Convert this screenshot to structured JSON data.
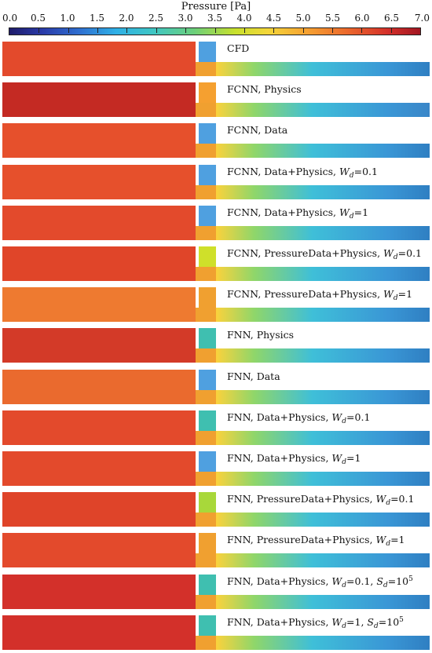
{
  "colorbar": {
    "title": "Pressure [Pa]",
    "min": 0.0,
    "max": 7.0,
    "ticks": [
      "0.0",
      "0.5",
      "1.0",
      "1.5",
      "2.0",
      "2.5",
      "3.0",
      "3.5",
      "4.0",
      "4.5",
      "5.0",
      "5.5",
      "6.0",
      "6.5",
      "7.0"
    ]
  },
  "panels": [
    {
      "label": [
        {
          "t": "CFD"
        }
      ],
      "left_color": "#e34a2c",
      "right_color": "#2f7fc2",
      "gap_color": "#4fa0e0"
    },
    {
      "label": [
        {
          "t": "FCNN, Physics"
        }
      ],
      "left_color": "#c42a23",
      "right_color": "#3a86c8",
      "gap_color": "#f5a030"
    },
    {
      "label": [
        {
          "t": "FCNN, Data"
        }
      ],
      "left_color": "#e6502c",
      "right_color": "#2f7fc2",
      "gap_color": "#4fa0e0"
    },
    {
      "label": [
        {
          "t": "FCNN, Data+Physics, "
        },
        {
          "t": "W",
          "i": true
        },
        {
          "t": "d",
          "sub": true
        },
        {
          "t": "=0.1"
        }
      ],
      "left_color": "#e6502c",
      "right_color": "#2f7fc2",
      "gap_color": "#4fa0e0"
    },
    {
      "label": [
        {
          "t": "FCNN, Data+Physics, "
        },
        {
          "t": "W",
          "i": true
        },
        {
          "t": "d",
          "sub": true
        },
        {
          "t": "=1"
        }
      ],
      "left_color": "#e34a2c",
      "right_color": "#2f7fc2",
      "gap_color": "#4fa0e0"
    },
    {
      "label": [
        {
          "t": "FCNN, PressureData+Physics, "
        },
        {
          "t": "W",
          "i": true
        },
        {
          "t": "d",
          "sub": true
        },
        {
          "t": "=0.1"
        }
      ],
      "left_color": "#e04529",
      "right_color": "#2f7fc2",
      "gap_color": "#cfe02a"
    },
    {
      "label": [
        {
          "t": "FCNN, PressureData+Physics, "
        },
        {
          "t": "W",
          "i": true
        },
        {
          "t": "d",
          "sub": true
        },
        {
          "t": "=1"
        }
      ],
      "left_color": "#ee7a30",
      "right_color": "#2f7fc2",
      "gap_color": "#f0a030"
    },
    {
      "label": [
        {
          "t": "FNN, Physics"
        }
      ],
      "left_color": "#d33a28",
      "right_color": "#2f7fc2",
      "gap_color": "#3fbfb0"
    },
    {
      "label": [
        {
          "t": "FNN, Data"
        }
      ],
      "left_color": "#ea6a2e",
      "right_color": "#2f7fc2",
      "gap_color": "#4fa0e0"
    },
    {
      "label": [
        {
          "t": "FNN, Data+Physics, "
        },
        {
          "t": "W",
          "i": true
        },
        {
          "t": "d",
          "sub": true
        },
        {
          "t": "=0.1"
        }
      ],
      "left_color": "#e34a2c",
      "right_color": "#2f7fc2",
      "gap_color": "#3fbfb0"
    },
    {
      "label": [
        {
          "t": "FNN, Data+Physics, "
        },
        {
          "t": "W",
          "i": true
        },
        {
          "t": "d",
          "sub": true
        },
        {
          "t": "=1"
        }
      ],
      "left_color": "#e34a2c",
      "right_color": "#2f7fc2",
      "gap_color": "#4fa0e0"
    },
    {
      "label": [
        {
          "t": "FNN, PressureData+Physics, "
        },
        {
          "t": "W",
          "i": true
        },
        {
          "t": "d",
          "sub": true
        },
        {
          "t": "=0.1"
        }
      ],
      "left_color": "#df4429",
      "right_color": "#2f7fc2",
      "gap_color": "#a8d83a"
    },
    {
      "label": [
        {
          "t": "FNN, PressureData+Physics, "
        },
        {
          "t": "W",
          "i": true
        },
        {
          "t": "d",
          "sub": true
        },
        {
          "t": "=1"
        }
      ],
      "left_color": "#e34a2c",
      "right_color": "#2f7fc2",
      "gap_color": "#f0a030"
    },
    {
      "label": [
        {
          "t": "FNN, Data+Physics, "
        },
        {
          "t": "W",
          "i": true
        },
        {
          "t": "d",
          "sub": true
        },
        {
          "t": "=0.1, "
        },
        {
          "t": "S",
          "i": true
        },
        {
          "t": "d",
          "sub": true
        },
        {
          "t": "=10"
        },
        {
          "t": "5",
          "sup": true
        }
      ],
      "left_color": "#d3302a",
      "right_color": "#2f7fc2",
      "gap_color": "#3fbfb0"
    },
    {
      "label": [
        {
          "t": "FNN, Data+Physics, "
        },
        {
          "t": "W",
          "i": true
        },
        {
          "t": "d",
          "sub": true
        },
        {
          "t": "=1, "
        },
        {
          "t": "S",
          "i": true
        },
        {
          "t": "d",
          "sub": true
        },
        {
          "t": "=10"
        },
        {
          "t": "5",
          "sup": true
        }
      ],
      "left_color": "#d3302a",
      "right_color": "#2f7fc2",
      "gap_color": "#3fbfb0"
    }
  ]
}
